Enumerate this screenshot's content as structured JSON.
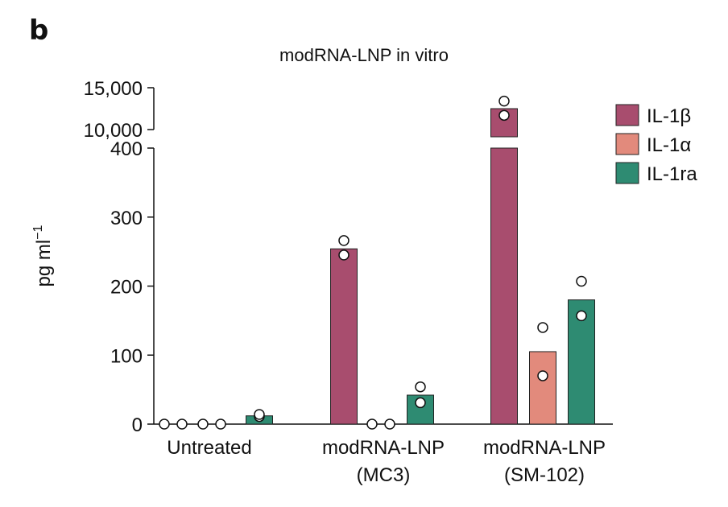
{
  "panel_label": "b",
  "chart_data": {
    "type": "bar",
    "title": "modRNA-LNP in vitro",
    "ylabel": "pg ml",
    "ylabel_superscript": "−1",
    "categories": [
      [
        "Untreated"
      ],
      [
        "modRNA-LNP",
        "(MC3)"
      ],
      [
        "modRNA-LNP",
        "(SM-102)"
      ]
    ],
    "series": [
      {
        "name": "IL-1β",
        "color": "#a84d6e",
        "values": [
          0,
          254,
          12500
        ],
        "points": [
          [
            0,
            0
          ],
          [
            266,
            245
          ],
          [
            13400,
            11700
          ]
        ]
      },
      {
        "name": "IL-1α",
        "color": "#e28a7c",
        "values": [
          0,
          0,
          105
        ],
        "points": [
          [
            0,
            0
          ],
          [
            0,
            0
          ],
          [
            140,
            70
          ]
        ]
      },
      {
        "name": "IL-1ra",
        "color": "#2e8b72",
        "values": [
          12,
          42,
          180
        ],
        "points": [
          [
            11,
            14
          ],
          [
            54,
            31
          ],
          [
            207,
            157
          ]
        ]
      }
    ],
    "axis_break": true,
    "y_lower": {
      "ylim": [
        0,
        400
      ],
      "ticks": [
        0,
        100,
        200,
        300,
        400
      ],
      "tick_labels": [
        "0",
        "100",
        "200",
        "300",
        "400"
      ]
    },
    "y_upper": {
      "ylim": [
        10000,
        15000
      ],
      "ticks": [
        10000,
        15000
      ],
      "tick_labels": [
        "10,000",
        "15,000"
      ]
    },
    "legend_position": "top-right",
    "grid": false
  }
}
